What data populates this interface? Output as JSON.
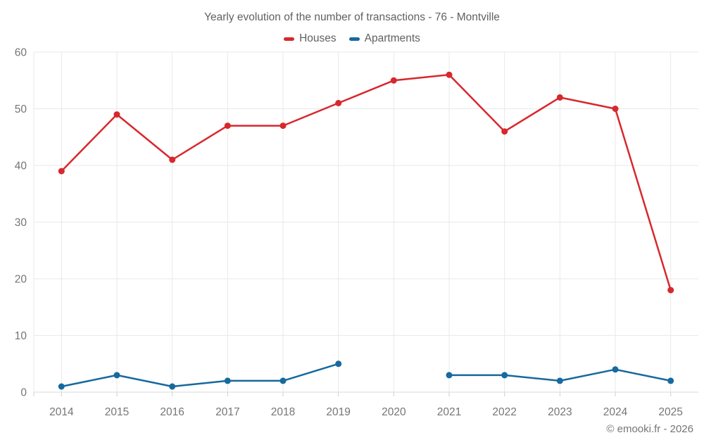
{
  "page": {
    "footer": "© emooki.fr - 2026"
  },
  "chart_data": {
    "type": "line",
    "title": "Yearly evolution of the number of transactions - 76 - Montville",
    "categories": [
      "2014",
      "2015",
      "2016",
      "2017",
      "2018",
      "2019",
      "2020",
      "2021",
      "2022",
      "2023",
      "2024",
      "2025"
    ],
    "series": [
      {
        "name": "Houses",
        "color": "#d7282d",
        "values": [
          39,
          49,
          41,
          47,
          47,
          51,
          55,
          56,
          46,
          52,
          50,
          18
        ]
      },
      {
        "name": "Apartments",
        "color": "#17699e",
        "values": [
          1,
          3,
          1,
          2,
          2,
          5,
          null,
          3,
          3,
          2,
          4,
          2
        ]
      }
    ],
    "xlabel": "",
    "ylabel": "",
    "ylim": [
      0,
      60
    ],
    "yticks": [
      0,
      10,
      20,
      30,
      40,
      50,
      60
    ],
    "grid": true,
    "legend_position": "top"
  },
  "colors": {
    "background": "#ffffff",
    "title_text": "#616161",
    "axis_text": "#757575",
    "grid": "#e9e9e9",
    "axis_line": "#d9d9d9",
    "tick": "#cfcfcf",
    "footer_text": "#757575"
  }
}
